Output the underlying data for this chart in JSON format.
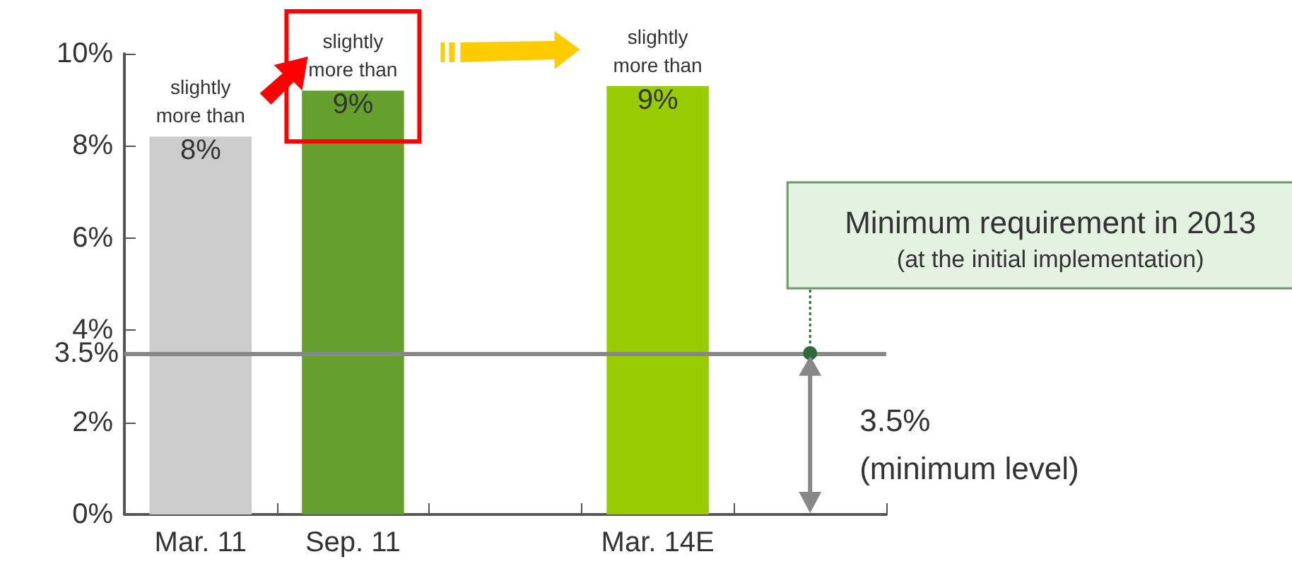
{
  "chart_data": {
    "type": "bar",
    "categories": [
      "Mar. 11",
      "Sep. 11",
      null,
      "Mar. 14E",
      null
    ],
    "values": [
      8.2,
      9.2,
      null,
      9.3,
      null
    ],
    "colors": [
      "#cccccc",
      "#66a02c",
      null,
      "#99cc00",
      null
    ],
    "value_labels": [
      "slightly\nmore than\n8%",
      "slightly\nmore than\n9%",
      null,
      "slightly\nmore than\n9%",
      null
    ],
    "ylim": [
      0,
      10
    ],
    "yticks": [
      {
        "value": 0,
        "label": "0%"
      },
      {
        "value": 2,
        "label": "2%"
      },
      {
        "value": 4,
        "label": "4%"
      },
      {
        "value": 6,
        "label": "6%"
      },
      {
        "value": 8,
        "label": "8%"
      },
      {
        "value": 10,
        "label": "10%"
      }
    ],
    "ref_lines": [
      {
        "axis": "y",
        "value": 3.5,
        "label": "3.5%",
        "color": "#888888"
      }
    ],
    "annotations": [
      "Minimum requirement in 2013\n(at the initial implementation)",
      "3.5%\n(minimum level)"
    ],
    "grid": false
  }
}
